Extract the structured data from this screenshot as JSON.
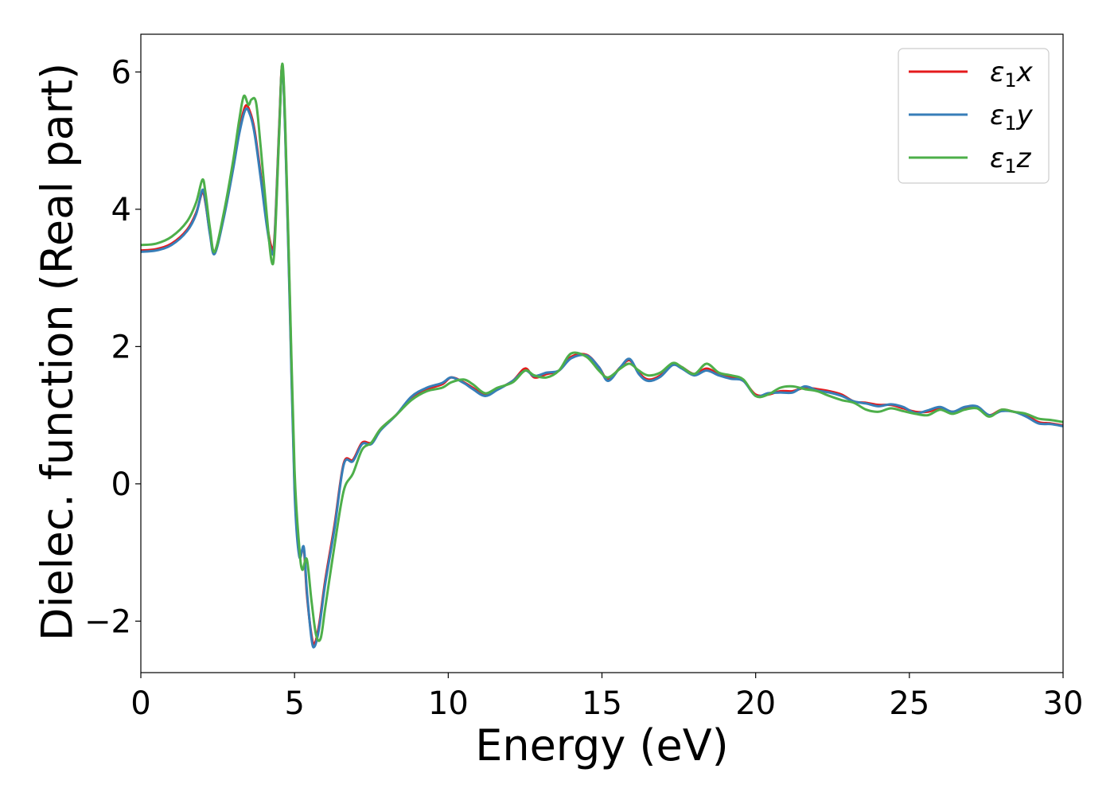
{
  "chart_data": {
    "type": "line",
    "xlabel": "Energy (eV)",
    "ylabel": "Dielec. function (Real part)",
    "xlim": [
      0,
      30
    ],
    "ylim": [
      -2.75,
      6.55
    ],
    "xticks": [
      0,
      5,
      10,
      15,
      20,
      25,
      30
    ],
    "xtick_labels": [
      "0",
      "5",
      "10",
      "15",
      "20",
      "25",
      "30"
    ],
    "yticks": [
      -2,
      0,
      2,
      4,
      6
    ],
    "ytick_labels": [
      "−2",
      "0",
      "2",
      "4",
      "6"
    ],
    "grid": false,
    "legend_position": "top-right",
    "series": [
      {
        "name": "ε1x",
        "legend_main": "ε",
        "legend_sub": "1",
        "legend_suffix": "x",
        "color": "#e41a1c",
        "x": [
          0,
          0.5,
          1.0,
          1.5,
          1.8,
          2.0,
          2.1,
          2.25,
          2.4,
          2.7,
          3.0,
          3.2,
          3.4,
          3.55,
          3.7,
          3.9,
          4.1,
          4.25,
          4.35,
          4.5,
          4.6,
          4.7,
          4.85,
          5.0,
          5.15,
          5.3,
          5.4,
          5.55,
          5.65,
          5.8,
          6.0,
          6.3,
          6.6,
          6.9,
          7.2,
          7.5,
          7.8,
          8.3,
          8.8,
          9.3,
          9.8,
          10.1,
          10.5,
          10.8,
          11.2,
          11.6,
          12.1,
          12.5,
          12.8,
          13.2,
          13.6,
          14.0,
          14.5,
          14.9,
          15.2,
          15.6,
          15.9,
          16.2,
          16.5,
          16.9,
          17.3,
          17.6,
          18.0,
          18.4,
          18.8,
          19.2,
          19.6,
          20.0,
          20.4,
          20.8,
          21.2,
          21.6,
          22.0,
          22.4,
          22.8,
          23.2,
          23.6,
          24.0,
          24.4,
          24.8,
          25.2,
          25.6,
          26.0,
          26.4,
          26.8,
          27.2,
          27.6,
          28.0,
          28.4,
          28.8,
          29.2,
          29.6,
          30.0
        ],
        "y": [
          3.4,
          3.42,
          3.5,
          3.7,
          3.95,
          4.25,
          4.1,
          3.65,
          3.38,
          3.9,
          4.6,
          5.15,
          5.5,
          5.42,
          5.15,
          4.5,
          3.8,
          3.45,
          3.6,
          5.2,
          6.1,
          5.1,
          2.6,
          0.0,
          -1.0,
          -0.95,
          -1.6,
          -2.2,
          -2.33,
          -2.05,
          -1.4,
          -0.6,
          0.3,
          0.35,
          0.6,
          0.6,
          0.8,
          1.0,
          1.25,
          1.38,
          1.45,
          1.55,
          1.48,
          1.4,
          1.3,
          1.38,
          1.5,
          1.68,
          1.55,
          1.6,
          1.65,
          1.85,
          1.88,
          1.7,
          1.52,
          1.7,
          1.8,
          1.62,
          1.52,
          1.58,
          1.75,
          1.7,
          1.6,
          1.68,
          1.6,
          1.55,
          1.5,
          1.3,
          1.3,
          1.35,
          1.35,
          1.4,
          1.38,
          1.35,
          1.3,
          1.2,
          1.18,
          1.15,
          1.15,
          1.1,
          1.05,
          1.05,
          1.1,
          1.05,
          1.1,
          1.12,
          1.0,
          1.08,
          1.05,
          1.0,
          0.9,
          0.88,
          0.85
        ]
      },
      {
        "name": "ε1y",
        "legend_main": "ε",
        "legend_sub": "1",
        "legend_suffix": "y",
        "color": "#377eb8",
        "x": [
          0,
          0.5,
          1.0,
          1.5,
          1.8,
          2.0,
          2.1,
          2.25,
          2.4,
          2.7,
          3.0,
          3.2,
          3.4,
          3.55,
          3.7,
          3.9,
          4.1,
          4.25,
          4.35,
          4.5,
          4.6,
          4.7,
          4.85,
          5.0,
          5.15,
          5.3,
          5.4,
          5.55,
          5.65,
          5.8,
          6.0,
          6.3,
          6.6,
          6.9,
          7.2,
          7.5,
          7.8,
          8.3,
          8.8,
          9.3,
          9.8,
          10.1,
          10.5,
          10.8,
          11.2,
          11.6,
          12.1,
          12.5,
          12.8,
          13.2,
          13.6,
          14.0,
          14.5,
          14.9,
          15.2,
          15.6,
          15.9,
          16.2,
          16.5,
          16.9,
          17.3,
          17.6,
          18.0,
          18.4,
          18.8,
          19.2,
          19.6,
          20.0,
          20.4,
          20.8,
          21.2,
          21.6,
          22.0,
          22.4,
          22.8,
          23.2,
          23.6,
          24.0,
          24.4,
          24.8,
          25.2,
          25.6,
          26.0,
          26.4,
          26.8,
          27.2,
          27.6,
          28.0,
          28.4,
          28.8,
          29.2,
          29.6,
          30.0
        ],
        "y": [
          3.38,
          3.4,
          3.48,
          3.68,
          3.93,
          4.28,
          4.12,
          3.63,
          3.35,
          3.88,
          4.58,
          5.1,
          5.45,
          5.38,
          5.1,
          4.45,
          3.75,
          3.38,
          3.55,
          5.15,
          6.08,
          5.05,
          2.5,
          -0.1,
          -1.05,
          -0.92,
          -1.55,
          -2.25,
          -2.37,
          -2.1,
          -1.45,
          -0.65,
          0.28,
          0.33,
          0.58,
          0.58,
          0.78,
          1.0,
          1.27,
          1.4,
          1.47,
          1.55,
          1.47,
          1.38,
          1.28,
          1.37,
          1.5,
          1.65,
          1.57,
          1.62,
          1.65,
          1.83,
          1.87,
          1.7,
          1.5,
          1.7,
          1.82,
          1.6,
          1.5,
          1.56,
          1.73,
          1.68,
          1.58,
          1.65,
          1.58,
          1.53,
          1.5,
          1.28,
          1.32,
          1.33,
          1.33,
          1.42,
          1.36,
          1.33,
          1.28,
          1.2,
          1.17,
          1.13,
          1.16,
          1.12,
          1.03,
          1.07,
          1.12,
          1.05,
          1.12,
          1.13,
          1.0,
          1.06,
          1.05,
          0.98,
          0.88,
          0.87,
          0.84
        ]
      },
      {
        "name": "ε1z",
        "legend_main": "ε",
        "legend_sub": "1",
        "legend_suffix": "z",
        "color": "#4daf4a",
        "x": [
          0,
          0.5,
          1.0,
          1.5,
          1.8,
          2.0,
          2.1,
          2.25,
          2.4,
          2.7,
          3.0,
          3.2,
          3.35,
          3.5,
          3.6,
          3.75,
          3.9,
          4.1,
          4.25,
          4.35,
          4.5,
          4.6,
          4.7,
          4.85,
          5.0,
          5.15,
          5.25,
          5.4,
          5.55,
          5.7,
          5.85,
          6.0,
          6.3,
          6.6,
          6.9,
          7.2,
          7.5,
          7.8,
          8.3,
          8.8,
          9.3,
          9.8,
          10.1,
          10.5,
          10.8,
          11.2,
          11.6,
          12.1,
          12.5,
          12.8,
          13.2,
          13.6,
          14.0,
          14.5,
          14.9,
          15.2,
          15.6,
          15.9,
          16.2,
          16.5,
          16.9,
          17.3,
          17.6,
          18.0,
          18.4,
          18.8,
          19.2,
          19.6,
          20.0,
          20.4,
          20.8,
          21.2,
          21.6,
          22.0,
          22.4,
          22.8,
          23.2,
          23.6,
          24.0,
          24.4,
          24.8,
          25.2,
          25.6,
          26.0,
          26.4,
          26.8,
          27.2,
          27.6,
          28.0,
          28.4,
          28.8,
          29.2,
          29.6,
          30.0
        ],
        "y": [
          3.48,
          3.5,
          3.6,
          3.82,
          4.1,
          4.43,
          4.25,
          3.72,
          3.38,
          3.95,
          4.7,
          5.3,
          5.65,
          5.52,
          5.6,
          5.55,
          4.9,
          3.9,
          3.25,
          3.45,
          5.1,
          6.12,
          5.2,
          2.7,
          0.2,
          -0.9,
          -1.25,
          -1.1,
          -1.7,
          -2.2,
          -2.25,
          -1.8,
          -0.9,
          -0.1,
          0.15,
          0.5,
          0.6,
          0.8,
          1.0,
          1.22,
          1.35,
          1.4,
          1.48,
          1.52,
          1.45,
          1.32,
          1.4,
          1.48,
          1.65,
          1.58,
          1.55,
          1.65,
          1.9,
          1.85,
          1.65,
          1.55,
          1.68,
          1.75,
          1.65,
          1.58,
          1.62,
          1.76,
          1.7,
          1.6,
          1.75,
          1.62,
          1.58,
          1.52,
          1.28,
          1.3,
          1.4,
          1.42,
          1.38,
          1.35,
          1.28,
          1.22,
          1.18,
          1.08,
          1.05,
          1.1,
          1.06,
          1.02,
          1.0,
          1.08,
          1.02,
          1.08,
          1.1,
          0.98,
          1.08,
          1.05,
          1.02,
          0.95,
          0.93,
          0.9
        ]
      }
    ]
  }
}
